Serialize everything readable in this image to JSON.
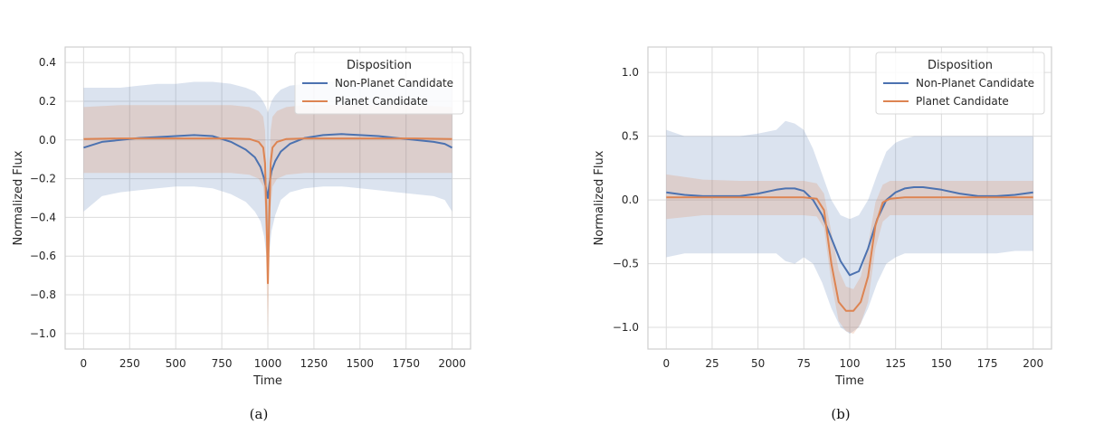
{
  "chart_data": [
    {
      "id": "a",
      "type": "line",
      "title": "",
      "caption": "(a)",
      "xlabel": "Time",
      "ylabel": "Normalized Flux",
      "xlim": [
        -100,
        2100
      ],
      "ylim": [
        -1.08,
        0.48
      ],
      "xticks": [
        0,
        250,
        500,
        750,
        1000,
        1250,
        1500,
        1750,
        2000
      ],
      "yticks": [
        -1.0,
        -0.8,
        -0.6,
        -0.4,
        -0.2,
        0.0,
        0.2,
        0.4
      ],
      "ytick_labels": [
        "−1.0",
        "−0.8",
        "−0.6",
        "−0.4",
        "−0.2",
        "0.0",
        "0.2",
        "0.4"
      ],
      "grid": true,
      "legend": {
        "title": "Disposition",
        "position": "top-right"
      },
      "series": [
        {
          "name": "Non-Planet Candidate",
          "color": "#4c72b0",
          "x": [
            0,
            100,
            200,
            300,
            400,
            500,
            600,
            700,
            800,
            880,
            930,
            960,
            980,
            990,
            1000,
            1010,
            1020,
            1040,
            1070,
            1120,
            1200,
            1300,
            1400,
            1500,
            1600,
            1700,
            1800,
            1900,
            1960,
            2000
          ],
          "y": [
            -0.04,
            -0.01,
            0.0,
            0.01,
            0.015,
            0.02,
            0.025,
            0.02,
            -0.01,
            -0.05,
            -0.09,
            -0.14,
            -0.2,
            -0.25,
            -0.3,
            -0.22,
            -0.16,
            -0.11,
            -0.06,
            -0.02,
            0.01,
            0.025,
            0.03,
            0.025,
            0.02,
            0.01,
            0.0,
            -0.01,
            -0.02,
            -0.04
          ],
          "band_upper": [
            0.27,
            0.27,
            0.27,
            0.28,
            0.29,
            0.29,
            0.3,
            0.3,
            0.29,
            0.27,
            0.25,
            0.22,
            0.19,
            0.17,
            0.14,
            0.17,
            0.2,
            0.23,
            0.26,
            0.28,
            0.29,
            0.3,
            0.3,
            0.29,
            0.29,
            0.28,
            0.28,
            0.27,
            0.27,
            0.27
          ],
          "band_lower": [
            -0.37,
            -0.29,
            -0.27,
            -0.26,
            -0.25,
            -0.24,
            -0.24,
            -0.25,
            -0.28,
            -0.32,
            -0.37,
            -0.42,
            -0.5,
            -0.58,
            -0.66,
            -0.56,
            -0.47,
            -0.39,
            -0.31,
            -0.27,
            -0.25,
            -0.24,
            -0.24,
            -0.25,
            -0.26,
            -0.27,
            -0.28,
            -0.29,
            -0.31,
            -0.37
          ]
        },
        {
          "name": "Planet Candidate",
          "color": "#dd8452",
          "x": [
            0,
            200,
            400,
            600,
            800,
            900,
            950,
            975,
            985,
            995,
            1000,
            1005,
            1015,
            1025,
            1050,
            1100,
            1200,
            1400,
            1600,
            1800,
            2000
          ],
          "y": [
            0.005,
            0.008,
            0.008,
            0.008,
            0.008,
            0.005,
            -0.01,
            -0.04,
            -0.12,
            -0.5,
            -0.74,
            -0.5,
            -0.12,
            -0.04,
            -0.01,
            0.005,
            0.008,
            0.008,
            0.008,
            0.008,
            0.005
          ],
          "band_upper": [
            0.17,
            0.18,
            0.18,
            0.18,
            0.18,
            0.17,
            0.15,
            0.12,
            0.05,
            -0.2,
            -0.3,
            -0.2,
            0.05,
            0.12,
            0.15,
            0.17,
            0.18,
            0.18,
            0.18,
            0.18,
            0.17
          ],
          "band_lower": [
            -0.17,
            -0.17,
            -0.17,
            -0.17,
            -0.17,
            -0.18,
            -0.2,
            -0.24,
            -0.35,
            -0.8,
            -1.0,
            -0.8,
            -0.35,
            -0.24,
            -0.2,
            -0.18,
            -0.17,
            -0.17,
            -0.17,
            -0.17,
            -0.17
          ]
        }
      ]
    },
    {
      "id": "b",
      "type": "line",
      "title": "",
      "caption": "(b)",
      "xlabel": "Time",
      "ylabel": "Normalized Flux",
      "xlim": [
        -10,
        210
      ],
      "ylim": [
        -1.17,
        1.2
      ],
      "xticks": [
        0,
        25,
        50,
        75,
        100,
        125,
        150,
        175,
        200
      ],
      "yticks": [
        -1.0,
        -0.5,
        0.0,
        0.5,
        1.0
      ],
      "ytick_labels": [
        "−1.0",
        "−0.5",
        "0.0",
        "0.5",
        "1.0"
      ],
      "grid": true,
      "legend": {
        "title": "Disposition",
        "position": "top-right"
      },
      "series": [
        {
          "name": "Non-Planet Candidate",
          "color": "#4c72b0",
          "x": [
            0,
            10,
            20,
            30,
            40,
            50,
            60,
            65,
            70,
            75,
            80,
            85,
            90,
            95,
            100,
            105,
            110,
            115,
            120,
            125,
            130,
            135,
            140,
            145,
            150,
            160,
            170,
            180,
            190,
            200
          ],
          "y": [
            0.06,
            0.04,
            0.03,
            0.03,
            0.03,
            0.05,
            0.08,
            0.09,
            0.09,
            0.07,
            0.0,
            -0.12,
            -0.3,
            -0.48,
            -0.59,
            -0.56,
            -0.38,
            -0.15,
            0.0,
            0.06,
            0.09,
            0.1,
            0.1,
            0.09,
            0.08,
            0.05,
            0.03,
            0.03,
            0.04,
            0.06
          ],
          "band_upper": [
            0.55,
            0.5,
            0.5,
            0.5,
            0.5,
            0.52,
            0.55,
            0.62,
            0.6,
            0.55,
            0.4,
            0.2,
            0.0,
            -0.12,
            -0.15,
            -0.12,
            0.0,
            0.2,
            0.38,
            0.45,
            0.48,
            0.5,
            0.5,
            0.5,
            0.5,
            0.5,
            0.5,
            0.5,
            0.5,
            0.5
          ],
          "band_lower": [
            -0.45,
            -0.42,
            -0.42,
            -0.42,
            -0.42,
            -0.42,
            -0.42,
            -0.48,
            -0.5,
            -0.45,
            -0.5,
            -0.65,
            -0.85,
            -1.0,
            -1.05,
            -1.0,
            -0.85,
            -0.65,
            -0.5,
            -0.45,
            -0.42,
            -0.42,
            -0.42,
            -0.42,
            -0.42,
            -0.42,
            -0.42,
            -0.42,
            -0.4,
            -0.4
          ]
        },
        {
          "name": "Planet Candidate",
          "color": "#dd8452",
          "x": [
            0,
            20,
            40,
            60,
            75,
            82,
            86,
            90,
            94,
            98,
            102,
            106,
            110,
            114,
            118,
            122,
            130,
            150,
            175,
            200
          ],
          "y": [
            0.02,
            0.02,
            0.02,
            0.02,
            0.02,
            0.01,
            -0.08,
            -0.5,
            -0.8,
            -0.87,
            -0.87,
            -0.8,
            -0.6,
            -0.2,
            -0.02,
            0.01,
            0.02,
            0.02,
            0.02,
            0.02
          ],
          "band_upper": [
            0.2,
            0.16,
            0.15,
            0.15,
            0.15,
            0.13,
            0.05,
            -0.25,
            -0.55,
            -0.68,
            -0.7,
            -0.6,
            -0.35,
            -0.02,
            0.12,
            0.15,
            0.15,
            0.15,
            0.15,
            0.15
          ],
          "band_lower": [
            -0.15,
            -0.12,
            -0.12,
            -0.12,
            -0.12,
            -0.13,
            -0.22,
            -0.65,
            -0.95,
            -1.03,
            -1.05,
            -0.97,
            -0.8,
            -0.38,
            -0.17,
            -0.12,
            -0.12,
            -0.12,
            -0.12,
            -0.12
          ]
        }
      ]
    }
  ]
}
